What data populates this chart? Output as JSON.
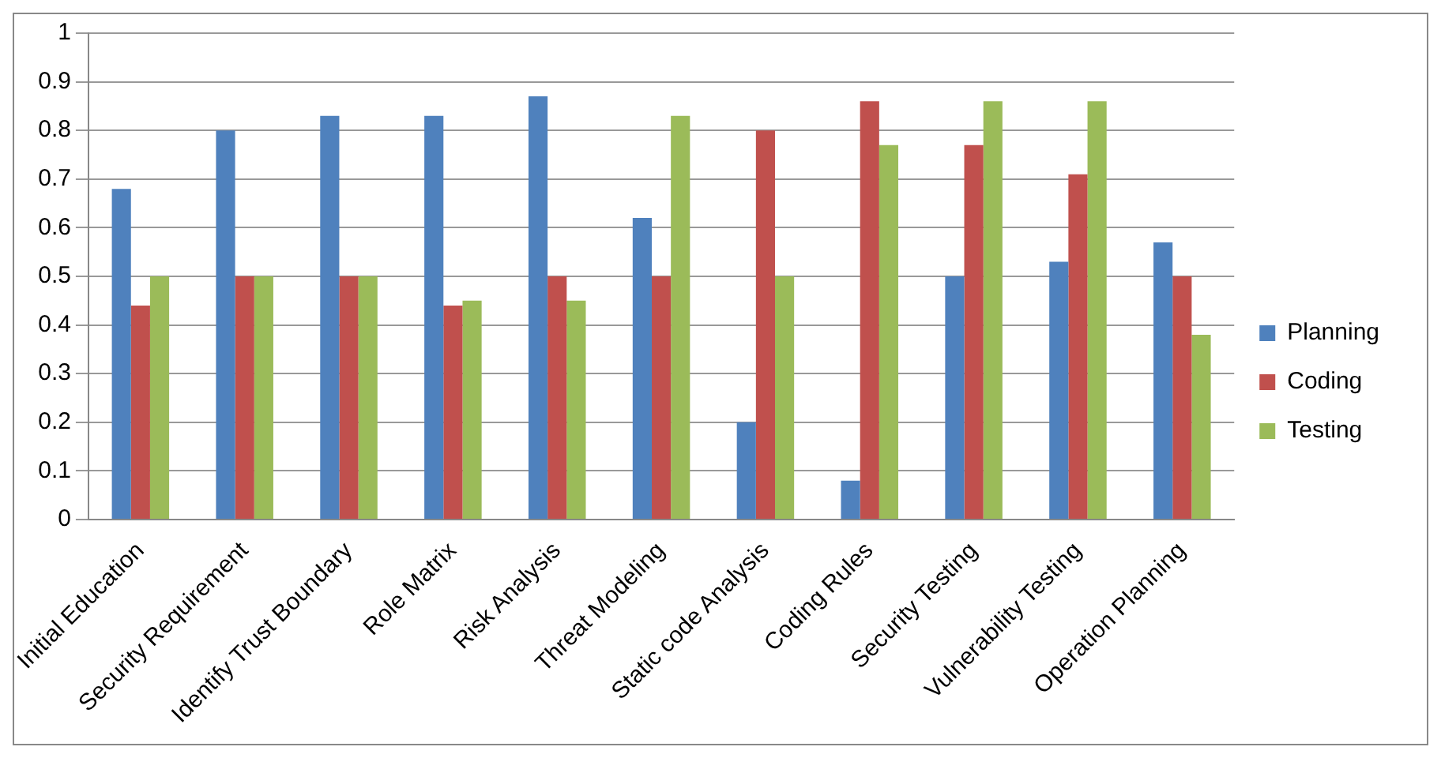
{
  "chart_data": {
    "type": "bar",
    "categories": [
      "Initial Education",
      "Security Requirement",
      "Identify Trust Boundary",
      "Role Matrix",
      "Risk Analysis",
      "Threat Modeling",
      "Static code Analysis",
      "Coding Rules",
      "Security Testing",
      "Vulnerability Testing",
      "Operation Planning"
    ],
    "series": [
      {
        "name": "Planning",
        "color": "#4f81bd",
        "values": [
          0.68,
          0.8,
          0.83,
          0.83,
          0.87,
          0.62,
          0.2,
          0.08,
          0.5,
          0.53,
          0.57
        ]
      },
      {
        "name": "Coding",
        "color": "#c0504d",
        "values": [
          0.44,
          0.5,
          0.5,
          0.44,
          0.5,
          0.5,
          0.8,
          0.86,
          0.77,
          0.71,
          0.5
        ]
      },
      {
        "name": "Testing",
        "color": "#9bbb59",
        "values": [
          0.5,
          0.5,
          0.5,
          0.45,
          0.45,
          0.83,
          0.5,
          0.77,
          0.86,
          0.86,
          0.38
        ]
      }
    ],
    "ylim": [
      0,
      1
    ],
    "yticks": [
      0,
      0.1,
      0.2,
      0.3,
      0.4,
      0.5,
      0.6,
      0.7,
      0.8,
      0.9,
      1
    ],
    "grid": "y",
    "legend": "right"
  }
}
